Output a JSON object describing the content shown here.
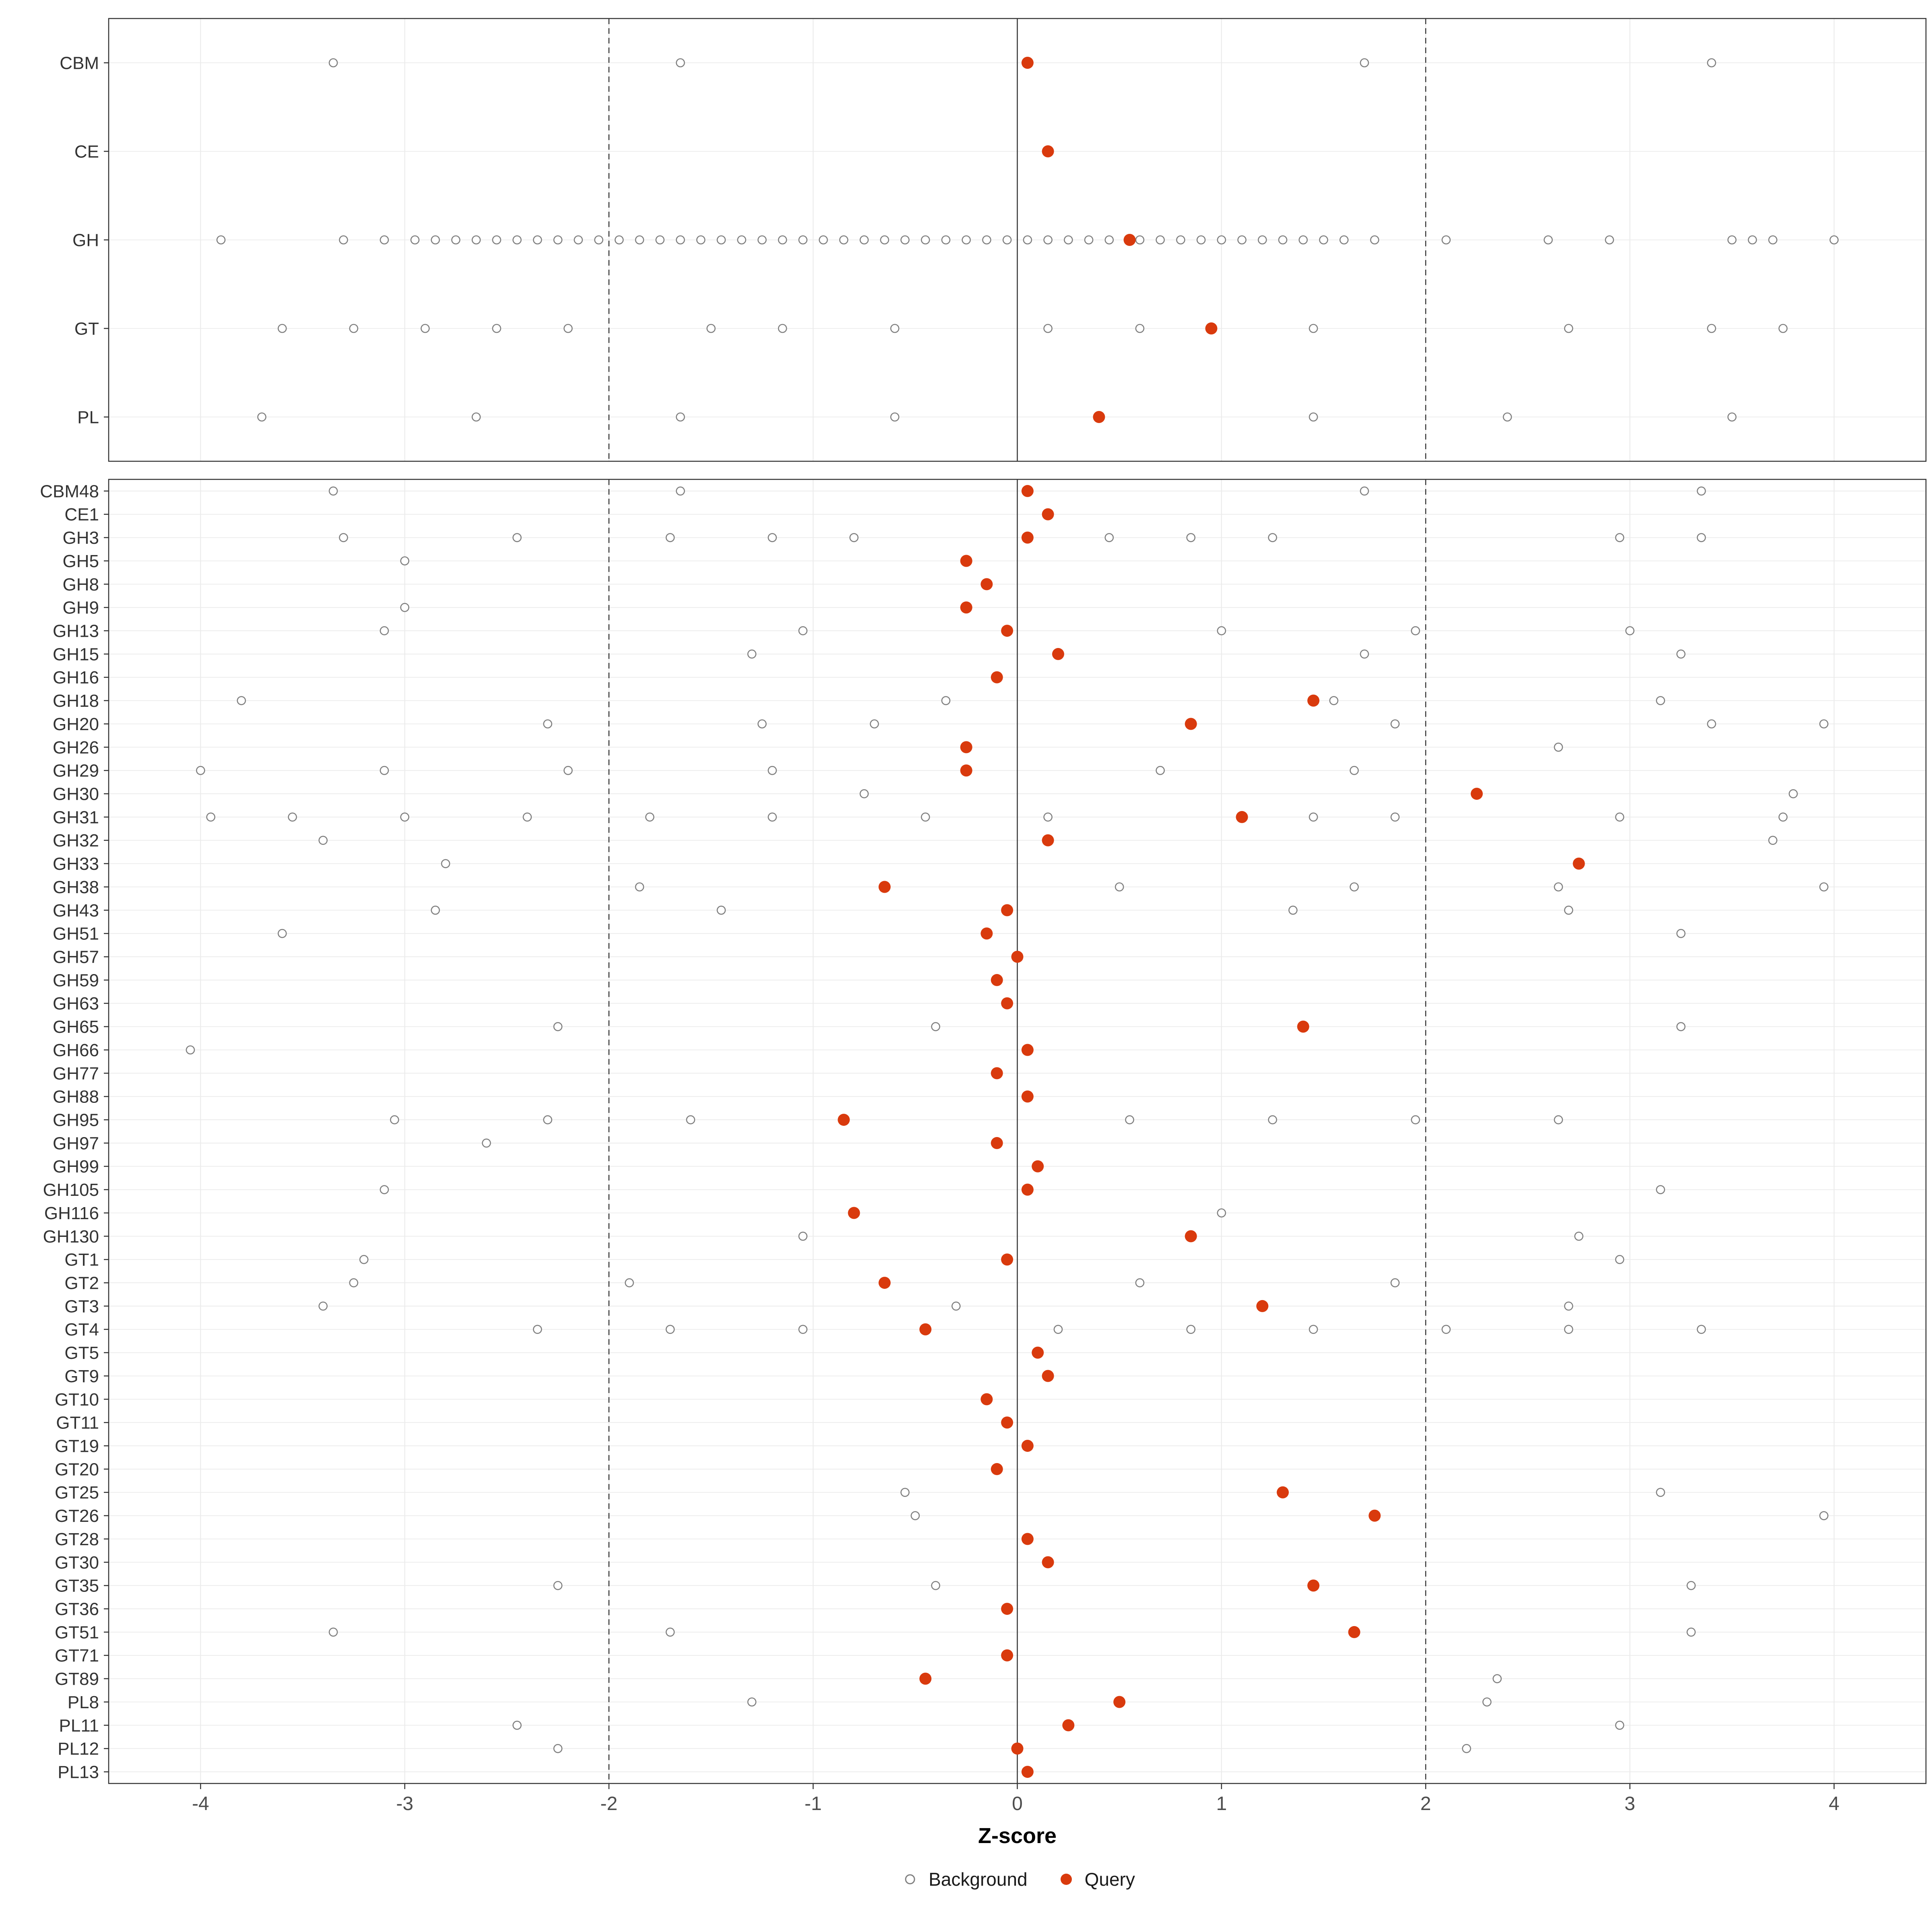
{
  "chart_data": {
    "type": "scatter",
    "title": "",
    "xlabel": "Z-score",
    "ylabel": "",
    "xlim": [
      -4.45,
      4.45
    ],
    "x_ticks": [
      -4,
      -3,
      -2,
      -1,
      0,
      1,
      2,
      3,
      4
    ],
    "reference_lines": {
      "solid": [
        0
      ],
      "dashed": [
        -2,
        2
      ]
    },
    "legend": [
      {
        "label": "Background",
        "marker": "open-circle",
        "color": "#808080"
      },
      {
        "label": "Query",
        "marker": "filled-circle",
        "color": "#D93A0D"
      }
    ],
    "colors": {
      "query_marker": "#D93A0D",
      "background_marker": "#808080",
      "grid": "#EBEBEB",
      "reference": "#333333",
      "border": "#333333",
      "axis_text": "#4d4d4d"
    },
    "panels": [
      {
        "name": "family",
        "rows": [
          {
            "label": "CBM",
            "background": [
              -3.35,
              -1.65,
              1.7,
              3.4
            ],
            "query": 0.05
          },
          {
            "label": "CE",
            "background": [],
            "query": 0.15
          },
          {
            "label": "GH",
            "background": [
              -3.9,
              -3.3,
              -3.1,
              -2.95,
              -2.85,
              -2.75,
              -2.65,
              -2.55,
              -2.45,
              -2.35,
              -2.25,
              -2.15,
              -2.05,
              -1.95,
              -1.85,
              -1.75,
              -1.65,
              -1.55,
              -1.45,
              -1.35,
              -1.25,
              -1.15,
              -1.05,
              -0.95,
              -0.85,
              -0.75,
              -0.65,
              -0.55,
              -0.45,
              -0.35,
              -0.25,
              -0.15,
              -0.05,
              0.05,
              0.15,
              0.25,
              0.35,
              0.45,
              0.6,
              0.7,
              0.8,
              0.9,
              1.0,
              1.1,
              1.2,
              1.3,
              1.4,
              1.5,
              1.6,
              1.75,
              2.1,
              2.6,
              2.9,
              3.5,
              3.6,
              3.7,
              4.0
            ],
            "query": 0.55
          },
          {
            "label": "GT",
            "background": [
              -3.6,
              -3.25,
              -2.9,
              -2.55,
              -2.2,
              -1.5,
              -1.15,
              -0.6,
              0.15,
              0.6,
              1.45,
              2.7,
              3.4,
              3.75
            ],
            "query": 0.95
          },
          {
            "label": "PL",
            "background": [
              -3.7,
              -2.65,
              -1.65,
              -0.6,
              1.45,
              2.4,
              3.5
            ],
            "query": 0.4
          }
        ]
      },
      {
        "name": "subfamily",
        "rows": [
          {
            "label": "CBM48",
            "background": [
              -3.35,
              -1.65,
              1.7,
              3.35
            ],
            "query": 0.05
          },
          {
            "label": "CE1",
            "background": [],
            "query": 0.15
          },
          {
            "label": "GH3",
            "background": [
              -3.3,
              -2.45,
              -1.7,
              -1.2,
              -0.8,
              0.45,
              0.85,
              1.25,
              2.95,
              3.35
            ],
            "query": 0.05
          },
          {
            "label": "GH5",
            "background": [
              -3.0
            ],
            "query": -0.25
          },
          {
            "label": "GH8",
            "background": [],
            "query": -0.15
          },
          {
            "label": "GH9",
            "background": [
              -3.0
            ],
            "query": -0.25
          },
          {
            "label": "GH13",
            "background": [
              -3.1,
              -1.05,
              1.0,
              1.95,
              3.0
            ],
            "query": -0.05
          },
          {
            "label": "GH15",
            "background": [
              -1.3,
              1.7,
              3.25
            ],
            "query": 0.2
          },
          {
            "label": "GH16",
            "background": [],
            "query": -0.1
          },
          {
            "label": "GH18",
            "background": [
              -3.8,
              -0.35,
              1.55,
              3.15
            ],
            "query": 1.45
          },
          {
            "label": "GH20",
            "background": [
              -2.3,
              -1.25,
              -0.7,
              1.85,
              3.4,
              3.95
            ],
            "query": 0.85
          },
          {
            "label": "GH26",
            "background": [
              2.65
            ],
            "query": -0.25
          },
          {
            "label": "GH29",
            "background": [
              -4.0,
              -3.1,
              -2.2,
              -1.2,
              0.7,
              1.65
            ],
            "query": -0.25
          },
          {
            "label": "GH30",
            "background": [
              -0.75,
              3.8
            ],
            "query": 2.25
          },
          {
            "label": "GH31",
            "background": [
              -3.95,
              -3.55,
              -3.0,
              -2.4,
              -1.8,
              -1.2,
              -0.45,
              0.15,
              1.45,
              1.85,
              2.95,
              3.75
            ],
            "query": 1.1
          },
          {
            "label": "GH32",
            "background": [
              -3.4,
              3.7
            ],
            "query": 0.15
          },
          {
            "label": "GH33",
            "background": [
              -2.8
            ],
            "query": 2.75
          },
          {
            "label": "GH38",
            "background": [
              -1.85,
              0.5,
              1.65,
              2.65,
              3.95
            ],
            "query": -0.65
          },
          {
            "label": "GH43",
            "background": [
              -2.85,
              -1.45,
              1.35,
              2.7
            ],
            "query": -0.05
          },
          {
            "label": "GH51",
            "background": [
              -3.6,
              3.25
            ],
            "query": -0.15
          },
          {
            "label": "GH57",
            "background": [],
            "query": 0.0
          },
          {
            "label": "GH59",
            "background": [],
            "query": -0.1
          },
          {
            "label": "GH63",
            "background": [],
            "query": -0.05
          },
          {
            "label": "GH65",
            "background": [
              -2.25,
              -0.4,
              3.25
            ],
            "query": 1.4
          },
          {
            "label": "GH66",
            "background": [
              -4.05
            ],
            "query": 0.05
          },
          {
            "label": "GH77",
            "background": [],
            "query": -0.1
          },
          {
            "label": "GH88",
            "background": [],
            "query": 0.05
          },
          {
            "label": "GH95",
            "background": [
              -3.05,
              -2.3,
              -1.6,
              0.55,
              1.25,
              1.95,
              2.65
            ],
            "query": -0.85
          },
          {
            "label": "GH97",
            "background": [
              -2.6
            ],
            "query": -0.1
          },
          {
            "label": "GH99",
            "background": [],
            "query": 0.1
          },
          {
            "label": "GH105",
            "background": [
              -3.1,
              3.15
            ],
            "query": 0.05
          },
          {
            "label": "GH116",
            "background": [
              1.0
            ],
            "query": -0.8
          },
          {
            "label": "GH130",
            "background": [
              -1.05,
              2.75
            ],
            "query": 0.85
          },
          {
            "label": "GT1",
            "background": [
              -3.2,
              2.95
            ],
            "query": -0.05
          },
          {
            "label": "GT2",
            "background": [
              -3.25,
              -1.9,
              0.6,
              1.85
            ],
            "query": -0.65
          },
          {
            "label": "GT3",
            "background": [
              -3.4,
              -0.3,
              2.7
            ],
            "query": 1.2
          },
          {
            "label": "GT4",
            "background": [
              -2.35,
              -1.7,
              -1.05,
              0.2,
              0.85,
              1.45,
              2.1,
              2.7,
              3.35
            ],
            "query": -0.45
          },
          {
            "label": "GT5",
            "background": [],
            "query": 0.1
          },
          {
            "label": "GT9",
            "background": [],
            "query": 0.15
          },
          {
            "label": "GT10",
            "background": [],
            "query": -0.15
          },
          {
            "label": "GT11",
            "background": [],
            "query": -0.05
          },
          {
            "label": "GT19",
            "background": [],
            "query": 0.05
          },
          {
            "label": "GT20",
            "background": [],
            "query": -0.1
          },
          {
            "label": "GT25",
            "background": [
              -0.55,
              3.15
            ],
            "query": 1.3
          },
          {
            "label": "GT26",
            "background": [
              -0.5,
              3.95
            ],
            "query": 1.75
          },
          {
            "label": "GT28",
            "background": [],
            "query": 0.05
          },
          {
            "label": "GT30",
            "background": [],
            "query": 0.15
          },
          {
            "label": "GT35",
            "background": [
              -2.25,
              -0.4,
              3.3
            ],
            "query": 1.45
          },
          {
            "label": "GT36",
            "background": [],
            "query": -0.05
          },
          {
            "label": "GT51",
            "background": [
              -3.35,
              -1.7,
              3.3
            ],
            "query": 1.65
          },
          {
            "label": "GT71",
            "background": [],
            "query": -0.05
          },
          {
            "label": "GT89",
            "background": [
              2.35
            ],
            "query": -0.45
          },
          {
            "label": "PL8",
            "background": [
              -1.3,
              2.3
            ],
            "query": 0.5
          },
          {
            "label": "PL11",
            "background": [
              -2.45,
              2.95
            ],
            "query": 0.25
          },
          {
            "label": "PL12",
            "background": [
              -2.25,
              2.2
            ],
            "query": 0.0
          },
          {
            "label": "PL13",
            "background": [],
            "query": 0.05
          }
        ]
      }
    ]
  }
}
